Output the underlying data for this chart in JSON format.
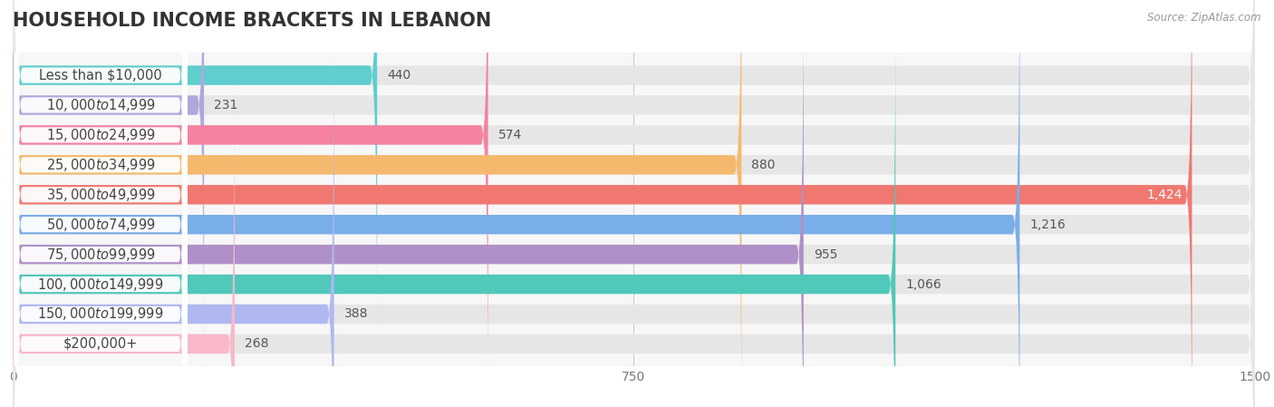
{
  "title": "HOUSEHOLD INCOME BRACKETS IN LEBANON",
  "source": "Source: ZipAtlas.com",
  "categories": [
    "Less than $10,000",
    "$10,000 to $14,999",
    "$15,000 to $24,999",
    "$25,000 to $34,999",
    "$35,000 to $49,999",
    "$50,000 to $74,999",
    "$75,000 to $99,999",
    "$100,000 to $149,999",
    "$150,000 to $199,999",
    "$200,000+"
  ],
  "values": [
    440,
    231,
    574,
    880,
    1424,
    1216,
    955,
    1066,
    388,
    268
  ],
  "bar_colors": [
    "#5ecece",
    "#aea8de",
    "#f482a0",
    "#f5b96e",
    "#f07870",
    "#7aaee8",
    "#b090c8",
    "#50c8ba",
    "#b0b8f0",
    "#f8b8c8"
  ],
  "xlim": [
    0,
    1500
  ],
  "xticks": [
    0,
    750,
    1500
  ],
  "title_fontsize": 15,
  "label_fontsize": 10.5,
  "value_fontsize": 10
}
